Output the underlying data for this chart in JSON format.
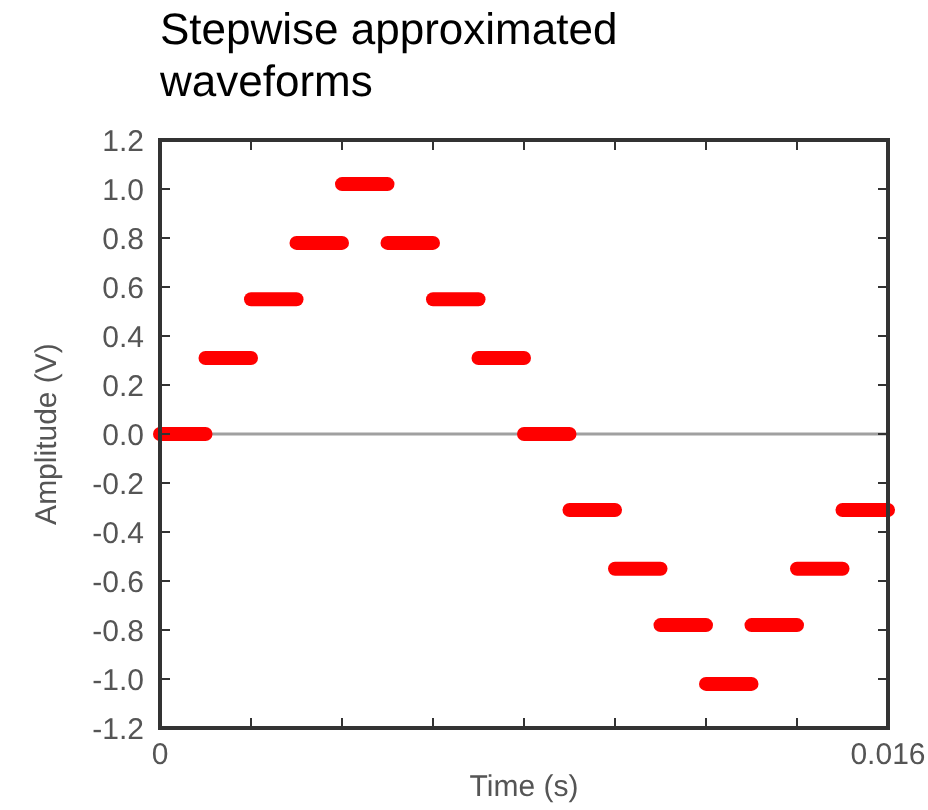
{
  "chart_data": {
    "type": "line",
    "title": "Stepwise approximated waveforms",
    "xlabel": "Time (s)",
    "ylabel": "Amplitude (V)",
    "xlim": [
      0,
      0.016
    ],
    "ylim": [
      -1.2,
      1.2
    ],
    "xticks": [
      0,
      {
        "value": 0.002,
        "label": null
      },
      {
        "value": 0.004,
        "label": null
      },
      {
        "value": 0.006,
        "label": null
      },
      {
        "value": 0.008,
        "label": null
      },
      {
        "value": 0.01,
        "label": null
      },
      {
        "value": 0.012,
        "label": null
      },
      {
        "value": 0.014,
        "label": null
      },
      0.016
    ],
    "yticks": [
      {
        "value": -1.2,
        "label": "-1.2"
      },
      {
        "value": -1,
        "label": "-1.0"
      },
      {
        "value": -0.8,
        "label": "-0.8"
      },
      {
        "value": -0.6,
        "label": "-0.6"
      },
      {
        "value": -0.4,
        "label": "-0.4"
      },
      {
        "value": -0.2,
        "label": "-0.2"
      },
      {
        "value": 0,
        "label": "0.0"
      },
      {
        "value": 0.2,
        "label": "0.2"
      },
      {
        "value": 0.4,
        "label": "0.4"
      },
      {
        "value": 0.6,
        "label": "0.6"
      },
      {
        "value": 0.8,
        "label": "0.8"
      },
      {
        "value": 1,
        "label": "1.0"
      },
      {
        "value": 1.2,
        "label": "1.2"
      }
    ],
    "grid": false,
    "line_style": "solid",
    "ref_lines": [
      {
        "axis": "y",
        "value": 0,
        "color": "#a0a0a0"
      }
    ],
    "series": [
      {
        "color": "#ff0000",
        "x": [
          0,
          0.001
        ],
        "values": [
          0,
          0
        ]
      },
      {
        "color": "#ff0000",
        "x": [
          0.001,
          0.002
        ],
        "values": [
          0.31,
          0.31
        ]
      },
      {
        "color": "#ff0000",
        "x": [
          0.002,
          0.003
        ],
        "values": [
          0.55,
          0.55
        ]
      },
      {
        "color": "#ff0000",
        "x": [
          0.003,
          0.004
        ],
        "values": [
          0.78,
          0.78
        ]
      },
      {
        "color": "#ff0000",
        "x": [
          0.004,
          0.005
        ],
        "values": [
          1.02,
          1.02
        ]
      },
      {
        "color": "#ff0000",
        "x": [
          0.005,
          0.006
        ],
        "values": [
          0.78,
          0.78
        ]
      },
      {
        "color": "#ff0000",
        "x": [
          0.006,
          0.007
        ],
        "values": [
          0.55,
          0.55
        ]
      },
      {
        "color": "#ff0000",
        "x": [
          0.007,
          0.008
        ],
        "values": [
          0.31,
          0.31
        ]
      },
      {
        "color": "#ff0000",
        "x": [
          0.008,
          0.009
        ],
        "values": [
          0,
          0
        ]
      },
      {
        "color": "#ff0000",
        "x": [
          0.009,
          0.01
        ],
        "values": [
          -0.31,
          -0.31
        ]
      },
      {
        "color": "#ff0000",
        "x": [
          0.01,
          0.011
        ],
        "values": [
          -0.55,
          -0.55
        ]
      },
      {
        "color": "#ff0000",
        "x": [
          0.011,
          0.012
        ],
        "values": [
          -0.78,
          -0.78
        ]
      },
      {
        "color": "#ff0000",
        "x": [
          0.012,
          0.013
        ],
        "values": [
          -1.02,
          -1.02
        ]
      },
      {
        "color": "#ff0000",
        "x": [
          0.013,
          0.014
        ],
        "values": [
          -0.78,
          -0.78
        ]
      },
      {
        "color": "#ff0000",
        "x": [
          0.014,
          0.015
        ],
        "values": [
          -0.55,
          -0.55
        ]
      },
      {
        "color": "#ff0000",
        "x": [
          0.015,
          0.016
        ],
        "values": [
          -0.31,
          -0.31
        ]
      }
    ]
  }
}
